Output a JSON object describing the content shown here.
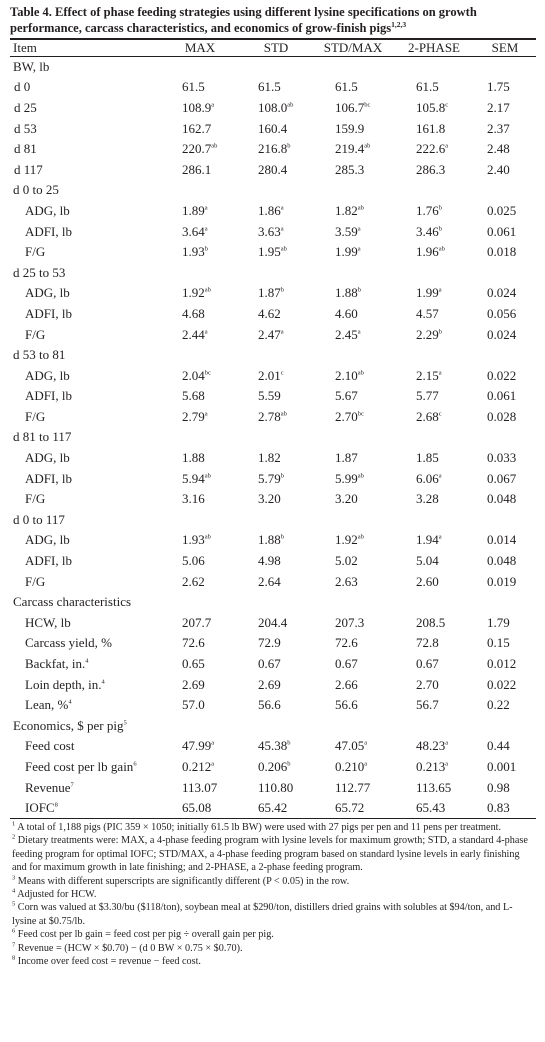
{
  "title": {
    "text": "Table 4. Effect of phase feeding strategies using different lysine specifications on growth performance, carcass characteristics, and economics of grow-finish pigs",
    "sup": "1,2,3"
  },
  "columns": [
    "Item",
    "MAX",
    "STD",
    "STD/MAX",
    "2-PHASE",
    "SEM"
  ],
  "rows": [
    {
      "label": "BW, lb",
      "level": 0
    },
    {
      "label": "d 0",
      "level": 1,
      "vals": [
        [
          "61.5",
          ""
        ],
        [
          "61.5",
          ""
        ],
        [
          "61.5",
          ""
        ],
        [
          "61.5",
          ""
        ],
        [
          "1.75",
          ""
        ]
      ]
    },
    {
      "label": "d 25",
      "level": 1,
      "vals": [
        [
          "108.9",
          "a"
        ],
        [
          "108.0",
          "ab"
        ],
        [
          "106.7",
          "bc"
        ],
        [
          "105.8",
          "c"
        ],
        [
          "2.17",
          ""
        ]
      ]
    },
    {
      "label": "d 53",
      "level": 1,
      "vals": [
        [
          "162.7",
          ""
        ],
        [
          "160.4",
          ""
        ],
        [
          "159.9",
          ""
        ],
        [
          "161.8",
          ""
        ],
        [
          "2.37",
          ""
        ]
      ]
    },
    {
      "label": "d 81",
      "level": 1,
      "vals": [
        [
          "220.7",
          "ab"
        ],
        [
          "216.8",
          "b"
        ],
        [
          "219.4",
          "ab"
        ],
        [
          "222.6",
          "a"
        ],
        [
          "2.48",
          ""
        ]
      ]
    },
    {
      "label": "d 117",
      "level": 1,
      "vals": [
        [
          "286.1",
          ""
        ],
        [
          "280.4",
          ""
        ],
        [
          "285.3",
          ""
        ],
        [
          "286.3",
          ""
        ],
        [
          "2.40",
          ""
        ]
      ]
    },
    {
      "label": "d 0 to 25",
      "level": 0
    },
    {
      "label": "ADG, lb",
      "level": 2,
      "vals": [
        [
          "1.89",
          "a"
        ],
        [
          "1.86",
          "a"
        ],
        [
          "1.82",
          "ab"
        ],
        [
          "1.76",
          "b"
        ],
        [
          "0.025",
          ""
        ]
      ]
    },
    {
      "label": "ADFI, lb",
      "level": 2,
      "vals": [
        [
          "3.64",
          "a"
        ],
        [
          "3.63",
          "a"
        ],
        [
          "3.59",
          "a"
        ],
        [
          "3.46",
          "b"
        ],
        [
          "0.061",
          ""
        ]
      ]
    },
    {
      "label": "F/G",
      "level": 2,
      "vals": [
        [
          "1.93",
          "b"
        ],
        [
          "1.95",
          "ab"
        ],
        [
          "1.99",
          "a"
        ],
        [
          "1.96",
          "ab"
        ],
        [
          "0.018",
          ""
        ]
      ]
    },
    {
      "label": "d 25 to 53",
      "level": 0
    },
    {
      "label": "ADG, lb",
      "level": 2,
      "vals": [
        [
          "1.92",
          "ab"
        ],
        [
          "1.87",
          "b"
        ],
        [
          "1.88",
          "b"
        ],
        [
          "1.99",
          "a"
        ],
        [
          "0.024",
          ""
        ]
      ]
    },
    {
      "label": "ADFI, lb",
      "level": 2,
      "vals": [
        [
          "4.68",
          ""
        ],
        [
          "4.62",
          ""
        ],
        [
          "4.60",
          ""
        ],
        [
          "4.57",
          ""
        ],
        [
          "0.056",
          ""
        ]
      ]
    },
    {
      "label": "F/G",
      "level": 2,
      "vals": [
        [
          "2.44",
          "a"
        ],
        [
          "2.47",
          "a"
        ],
        [
          "2.45",
          "a"
        ],
        [
          "2.29",
          "b"
        ],
        [
          "0.024",
          ""
        ]
      ]
    },
    {
      "label": "d 53 to 81",
      "level": 0
    },
    {
      "label": "ADG, lb",
      "level": 2,
      "vals": [
        [
          "2.04",
          "bc"
        ],
        [
          "2.01",
          "c"
        ],
        [
          "2.10",
          "ab"
        ],
        [
          "2.15",
          "a"
        ],
        [
          "0.022",
          ""
        ]
      ]
    },
    {
      "label": "ADFI, lb",
      "level": 2,
      "vals": [
        [
          "5.68",
          ""
        ],
        [
          "5.59",
          ""
        ],
        [
          "5.67",
          ""
        ],
        [
          "5.77",
          ""
        ],
        [
          "0.061",
          ""
        ]
      ]
    },
    {
      "label": "F/G",
      "level": 2,
      "vals": [
        [
          "2.79",
          "a"
        ],
        [
          "2.78",
          "ab"
        ],
        [
          "2.70",
          "bc"
        ],
        [
          "2.68",
          "c"
        ],
        [
          "0.028",
          ""
        ]
      ]
    },
    {
      "label": "d 81 to 117",
      "level": 0
    },
    {
      "label": "ADG, lb",
      "level": 2,
      "vals": [
        [
          "1.88",
          ""
        ],
        [
          "1.82",
          ""
        ],
        [
          "1.87",
          ""
        ],
        [
          "1.85",
          ""
        ],
        [
          "0.033",
          ""
        ]
      ]
    },
    {
      "label": "ADFI, lb",
      "level": 2,
      "vals": [
        [
          "5.94",
          "ab"
        ],
        [
          "5.79",
          "b"
        ],
        [
          "5.99",
          "ab"
        ],
        [
          "6.06",
          "a"
        ],
        [
          "0.067",
          ""
        ]
      ]
    },
    {
      "label": "F/G",
      "level": 2,
      "vals": [
        [
          "3.16",
          ""
        ],
        [
          "3.20",
          ""
        ],
        [
          "3.20",
          ""
        ],
        [
          "3.28",
          ""
        ],
        [
          "0.048",
          ""
        ]
      ]
    },
    {
      "label": "d 0 to 117",
      "level": 0
    },
    {
      "label": "ADG, lb",
      "level": 2,
      "vals": [
        [
          "1.93",
          "ab"
        ],
        [
          "1.88",
          "b"
        ],
        [
          "1.92",
          "ab"
        ],
        [
          "1.94",
          "a"
        ],
        [
          "0.014",
          ""
        ]
      ]
    },
    {
      "label": "ADFI, lb",
      "level": 2,
      "vals": [
        [
          "5.06",
          ""
        ],
        [
          "4.98",
          ""
        ],
        [
          "5.02",
          ""
        ],
        [
          "5.04",
          ""
        ],
        [
          "0.048",
          ""
        ]
      ]
    },
    {
      "label": "F/G",
      "level": 2,
      "vals": [
        [
          "2.62",
          ""
        ],
        [
          "2.64",
          ""
        ],
        [
          "2.63",
          ""
        ],
        [
          "2.60",
          ""
        ],
        [
          "0.019",
          ""
        ]
      ]
    },
    {
      "label": "Carcass characteristics",
      "level": 0
    },
    {
      "label": "HCW, lb",
      "level": 2,
      "vals": [
        [
          "207.7",
          ""
        ],
        [
          "204.4",
          ""
        ],
        [
          "207.3",
          ""
        ],
        [
          "208.5",
          ""
        ],
        [
          "1.79",
          ""
        ]
      ]
    },
    {
      "label": "Carcass yield, %",
      "level": 2,
      "vals": [
        [
          "72.6",
          ""
        ],
        [
          "72.9",
          ""
        ],
        [
          "72.6",
          ""
        ],
        [
          "72.8",
          ""
        ],
        [
          "0.15",
          ""
        ]
      ]
    },
    {
      "label": "Backfat, in.",
      "labelSup": "4",
      "level": 2,
      "vals": [
        [
          "0.65",
          ""
        ],
        [
          "0.67",
          ""
        ],
        [
          "0.67",
          ""
        ],
        [
          "0.67",
          ""
        ],
        [
          "0.012",
          ""
        ]
      ]
    },
    {
      "label": "Loin depth, in.",
      "labelSup": "4",
      "level": 2,
      "vals": [
        [
          "2.69",
          ""
        ],
        [
          "2.69",
          ""
        ],
        [
          "2.66",
          ""
        ],
        [
          "2.70",
          ""
        ],
        [
          "0.022",
          ""
        ]
      ]
    },
    {
      "label": "Lean, %",
      "labelSup": "4",
      "level": 2,
      "vals": [
        [
          "57.0",
          ""
        ],
        [
          "56.6",
          ""
        ],
        [
          "56.6",
          ""
        ],
        [
          "56.7",
          ""
        ],
        [
          "0.22",
          ""
        ]
      ]
    },
    {
      "label": "Economics, $ per pig",
      "labelSup": "5",
      "level": 0
    },
    {
      "label": "Feed cost",
      "level": 2,
      "vals": [
        [
          "47.99",
          "a"
        ],
        [
          "45.38",
          "b"
        ],
        [
          "47.05",
          "a"
        ],
        [
          "48.23",
          "a"
        ],
        [
          "0.44",
          ""
        ]
      ]
    },
    {
      "label": "Feed cost per lb gain",
      "labelSup": "6",
      "level": 2,
      "vals": [
        [
          "0.212",
          "a"
        ],
        [
          "0.206",
          "b"
        ],
        [
          "0.210",
          "a"
        ],
        [
          "0.213",
          "a"
        ],
        [
          "0.001",
          ""
        ]
      ]
    },
    {
      "label": "Revenue",
      "labelSup": "7",
      "level": 2,
      "vals": [
        [
          "113.07",
          ""
        ],
        [
          "110.80",
          ""
        ],
        [
          "112.77",
          ""
        ],
        [
          "113.65",
          ""
        ],
        [
          "0.98",
          ""
        ]
      ]
    },
    {
      "label": "IOFC",
      "labelSup": "8",
      "level": 2,
      "vals": [
        [
          "65.08",
          ""
        ],
        [
          "65.42",
          ""
        ],
        [
          "65.72",
          ""
        ],
        [
          "65.43",
          ""
        ],
        [
          "0.83",
          ""
        ]
      ]
    }
  ],
  "footnotes": [
    {
      "mark": "1",
      "text": "A total of 1,188 pigs (PIC 359 × 1050; initially 61.5 lb BW) were used with 27 pigs per pen and 11 pens per treatment."
    },
    {
      "mark": "2",
      "text": "Dietary treatments were: MAX, a 4-phase feeding program with lysine levels for maximum growth; STD, a standard 4-phase feeding program for optimal IOFC; STD/MAX, a 4-phase feeding program based on standard lysine levels in early finishing and for maximum growth in late finishing; and 2-PHASE, a 2-phase feeding program."
    },
    {
      "mark": "3",
      "text": "Means with different superscripts are significantly different (P < 0.05) in the row."
    },
    {
      "mark": "4",
      "text": "Adjusted for HCW."
    },
    {
      "mark": "5",
      "text": "Corn was valued at $3.30/bu ($118/ton), soybean meal at $290/ton, distillers dried grains with solubles at $94/ton, and L-lysine at $0.75/lb."
    },
    {
      "mark": "6",
      "text": "Feed cost per lb gain = feed cost per pig ÷ overall gain per pig."
    },
    {
      "mark": "7",
      "text": "Revenue = (HCW × $0.70) − (d 0 BW × 0.75 × $0.70)."
    },
    {
      "mark": "8",
      "text": "Income over feed cost = revenue − feed cost."
    }
  ]
}
